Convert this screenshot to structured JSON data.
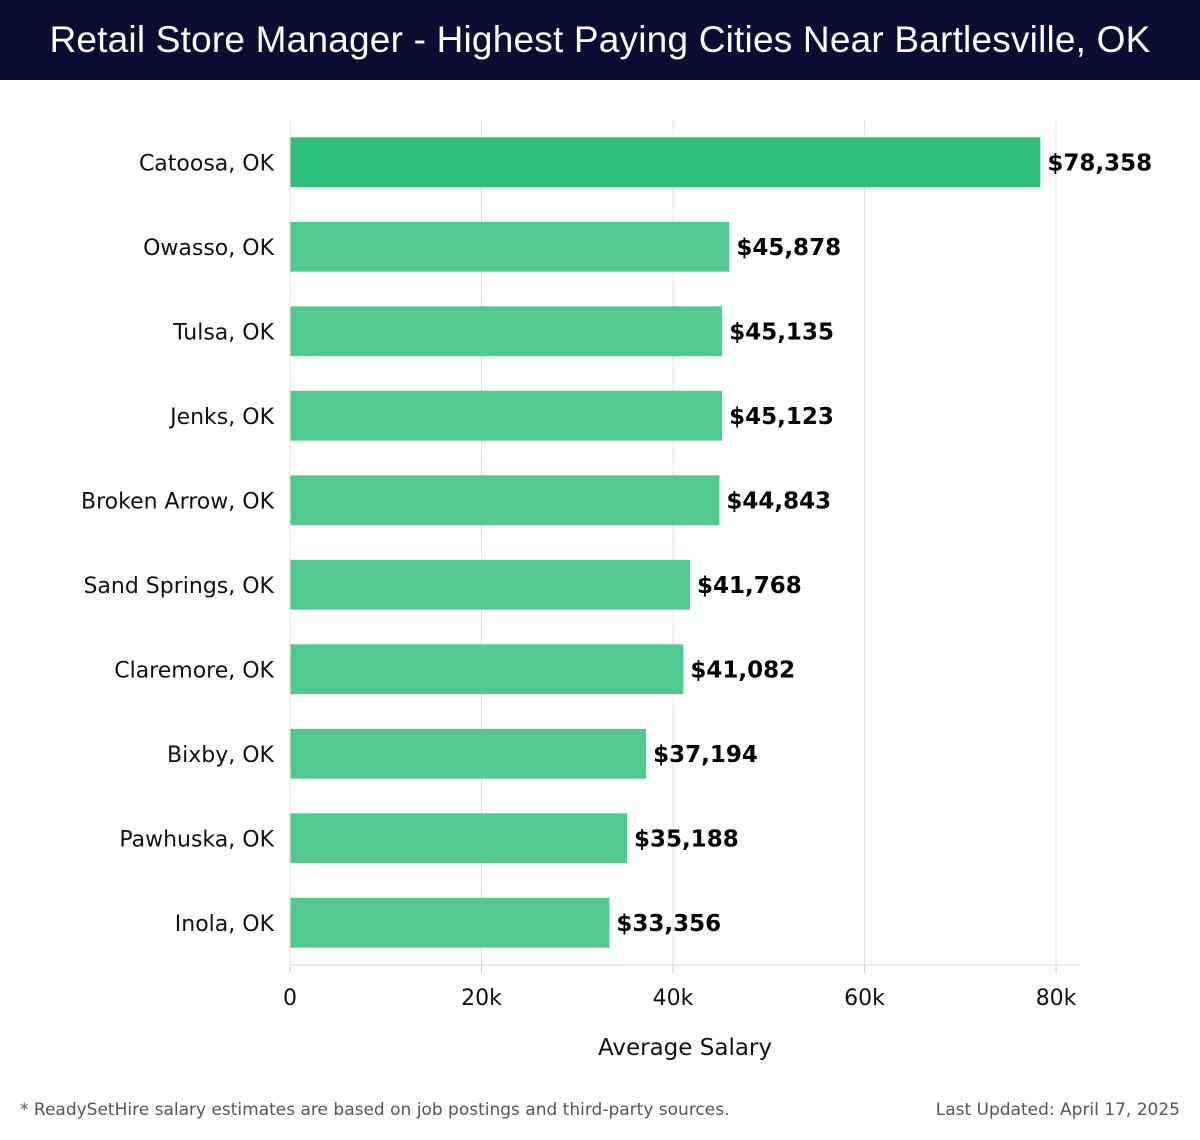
{
  "header": {
    "title": "Retail Store Manager - Highest Paying Cities Near Bartlesville, OK"
  },
  "chart_data": {
    "type": "bar",
    "orientation": "horizontal",
    "categories": [
      "Catoosa, OK",
      "Owasso, OK",
      "Tulsa, OK",
      "Jenks, OK",
      "Broken Arrow, OK",
      "Sand Springs, OK",
      "Claremore, OK",
      "Bixby, OK",
      "Pawhuska, OK",
      "Inola, OK"
    ],
    "values": [
      78358,
      45878,
      45135,
      45123,
      44843,
      41768,
      41082,
      37194,
      35188,
      33356
    ],
    "value_labels": [
      "$78,358",
      "$45,878",
      "$45,135",
      "$45,123",
      "$44,843",
      "$41,768",
      "$41,082",
      "$37,194",
      "$35,188",
      "$33,356"
    ],
    "xlabel": "Average Salary",
    "ylabel": "",
    "xlim": [
      0,
      82500
    ],
    "xticks": [
      0,
      20000,
      40000,
      60000,
      80000
    ],
    "xtick_labels": [
      "0",
      "20k",
      "40k",
      "60k",
      "80k"
    ],
    "grid": true,
    "colors": {
      "highlight": "#2dbf77",
      "bar": "#52c98f"
    }
  },
  "footer": {
    "note": "* ReadySetHire salary estimates are based on job postings and third-party sources.",
    "updated": "Last Updated: April 17, 2025"
  }
}
